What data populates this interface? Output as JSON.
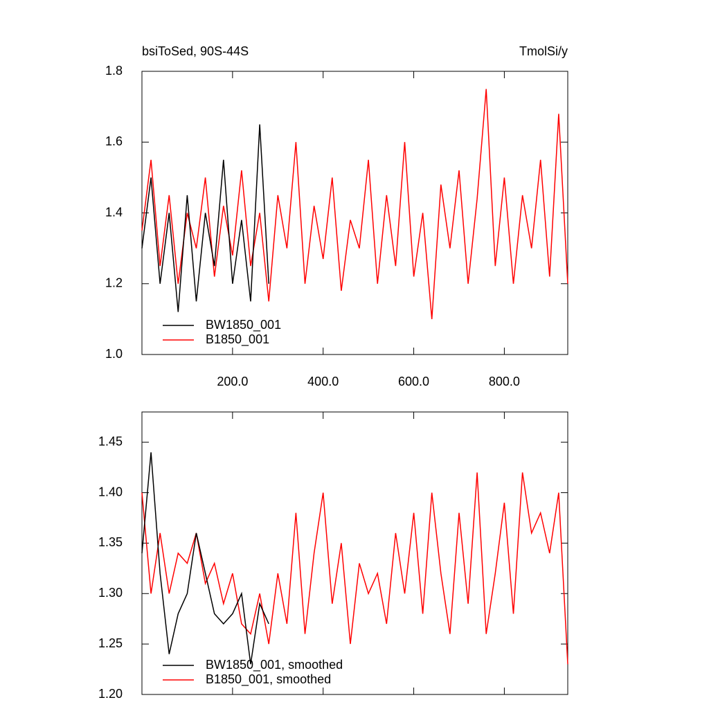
{
  "chart_data": [
    {
      "type": "line",
      "title": "bsiToSed, 90S-44S",
      "units": "TmolSi/y",
      "x": [
        0,
        20,
        40,
        60,
        80,
        100,
        120,
        140,
        160,
        180,
        200,
        220,
        240,
        260,
        280,
        300,
        320,
        340,
        360,
        380,
        400,
        420,
        440,
        460,
        480,
        500,
        520,
        540,
        560,
        580,
        600,
        620,
        640,
        660,
        680,
        700,
        720,
        740,
        760,
        780,
        800,
        820,
        840,
        860,
        880,
        900,
        920,
        940
      ],
      "series": [
        {
          "name": "BW1850_001",
          "color": "#000000",
          "values": [
            1.3,
            1.5,
            1.2,
            1.4,
            1.12,
            1.45,
            1.15,
            1.4,
            1.25,
            1.55,
            1.2,
            1.38,
            1.15,
            1.65,
            1.2,
            null,
            null,
            null,
            null,
            null,
            null,
            null,
            null,
            null,
            null,
            null,
            null,
            null,
            null,
            null,
            null,
            null,
            null,
            null,
            null,
            null,
            null,
            null,
            null,
            null,
            null,
            null,
            null,
            null,
            null,
            null,
            null,
            null
          ]
        },
        {
          "name": "B1850_001",
          "color": "#ff0000",
          "values": [
            1.35,
            1.55,
            1.25,
            1.45,
            1.2,
            1.4,
            1.3,
            1.5,
            1.22,
            1.42,
            1.28,
            1.52,
            1.25,
            1.4,
            1.15,
            1.45,
            1.3,
            1.6,
            1.2,
            1.42,
            1.27,
            1.5,
            1.18,
            1.38,
            1.3,
            1.55,
            1.2,
            1.45,
            1.25,
            1.6,
            1.22,
            1.4,
            1.1,
            1.48,
            1.3,
            1.52,
            1.2,
            1.44,
            1.75,
            1.25,
            1.5,
            1.2,
            1.45,
            1.3,
            1.55,
            1.22,
            1.68,
            1.2
          ]
        }
      ],
      "xlim": [
        0,
        940
      ],
      "xticks": [
        {
          "value": 200,
          "label": "200.0"
        },
        {
          "value": 400,
          "label": "400.0"
        },
        {
          "value": 600,
          "label": "600.0"
        },
        {
          "value": 800,
          "label": "800.0"
        }
      ],
      "xtick_labels": true,
      "ylim": [
        1.0,
        1.8
      ],
      "yticks": [
        {
          "value": 1.0,
          "label": "1.0"
        },
        1.2,
        1.4,
        1.6,
        1.8
      ],
      "legend": "lower left"
    },
    {
      "type": "line",
      "x": [
        0,
        20,
        40,
        60,
        80,
        100,
        120,
        140,
        160,
        180,
        200,
        220,
        240,
        260,
        280,
        300,
        320,
        340,
        360,
        380,
        400,
        420,
        440,
        460,
        480,
        500,
        520,
        540,
        560,
        580,
        600,
        620,
        640,
        660,
        680,
        700,
        720,
        740,
        760,
        780,
        800,
        820,
        840,
        860,
        880,
        900,
        920,
        940
      ],
      "series": [
        {
          "name": "BW1850_001, smoothed",
          "color": "#000000",
          "values": [
            1.34,
            1.44,
            1.32,
            1.24,
            1.28,
            1.3,
            1.36,
            1.32,
            1.28,
            1.27,
            1.28,
            1.3,
            1.23,
            1.29,
            1.27,
            null,
            null,
            null,
            null,
            null,
            null,
            null,
            null,
            null,
            null,
            null,
            null,
            null,
            null,
            null,
            null,
            null,
            null,
            null,
            null,
            null,
            null,
            null,
            null,
            null,
            null,
            null,
            null,
            null,
            null,
            null,
            null,
            null
          ]
        },
        {
          "name": "B1850_001, smoothed",
          "color": "#ff0000",
          "values": [
            1.4,
            1.3,
            1.36,
            1.3,
            1.34,
            1.33,
            1.36,
            1.31,
            1.33,
            1.29,
            1.32,
            1.27,
            1.26,
            1.3,
            1.25,
            1.32,
            1.27,
            1.38,
            1.26,
            1.34,
            1.4,
            1.29,
            1.35,
            1.25,
            1.33,
            1.3,
            1.32,
            1.27,
            1.36,
            1.3,
            1.38,
            1.28,
            1.4,
            1.32,
            1.26,
            1.38,
            1.29,
            1.42,
            1.26,
            1.32,
            1.39,
            1.28,
            1.42,
            1.36,
            1.38,
            1.34,
            1.4,
            1.23
          ]
        }
      ],
      "xlim": [
        0,
        940
      ],
      "xticks": [
        200,
        400,
        600,
        800
      ],
      "xtick_labels": false,
      "ylim": [
        1.2,
        1.48
      ],
      "yticks": [
        {
          "value": 1.2,
          "label": "1.20"
        },
        {
          "value": 1.25,
          "label": "1.25"
        },
        {
          "value": 1.3,
          "label": "1.30"
        },
        {
          "value": 1.35,
          "label": "1.35"
        },
        {
          "value": 1.4,
          "label": "1.40"
        },
        {
          "value": 1.45,
          "label": "1.45"
        }
      ],
      "legend": "lower left"
    }
  ]
}
